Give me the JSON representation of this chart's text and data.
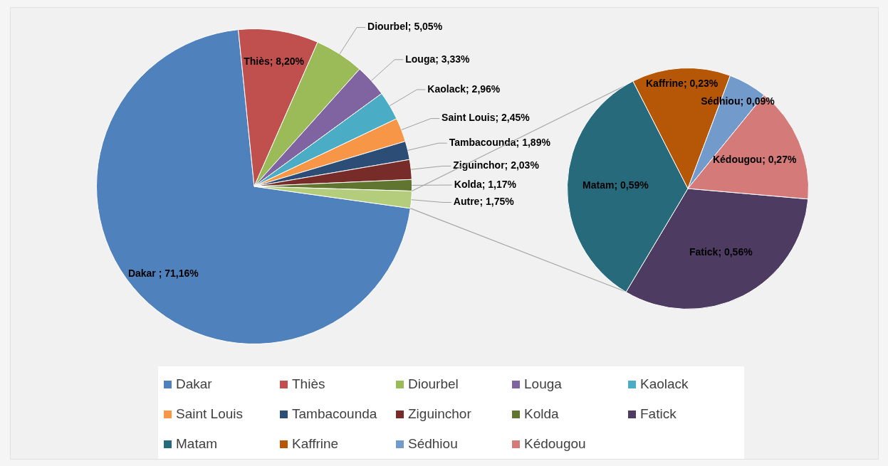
{
  "chart_data": [
    {
      "type": "pie",
      "categories": [
        "Dakar",
        "Thiès",
        "Diourbel",
        "Louga",
        "Kaolack",
        "Saint Louis",
        "Tambacounda",
        "Ziguinchor",
        "Kolda",
        "Autre"
      ],
      "values": [
        71.16,
        8.2,
        5.05,
        3.33,
        2.96,
        2.45,
        1.89,
        2.03,
        1.17,
        1.75
      ],
      "colors": [
        "#4f81bd",
        "#c0504d",
        "#9bbb59",
        "#8064a2",
        "#4bacc6",
        "#f79646",
        "#2c4d75",
        "#772c2a",
        "#5f7530",
        "#b3cd7d"
      ],
      "value_labels": [
        " ; 71,16%",
        "; 8,20%",
        "; 5,05%",
        "; 3,33%",
        "; 2,96%",
        "; 2,45%",
        "; 1,89%",
        "; 2,03%",
        "; 1,17%",
        "; 1,75%"
      ],
      "legend": "bottom"
    },
    {
      "type": "pie",
      "categories": [
        "Fatick",
        "Matam",
        "Kaffrine",
        "Sédhiou",
        "Kédougou"
      ],
      "values": [
        0.56,
        0.59,
        0.23,
        0.09,
        0.27
      ],
      "colors": [
        "#4d3b62",
        "#276a7c",
        "#b65708",
        "#729aca",
        "#d47b79"
      ],
      "value_labels": [
        "; 0,56%",
        "; 0,59%",
        "; 0,23%",
        "; 0,09%",
        "; 0,27%"
      ],
      "legend": "bottom"
    }
  ]
}
